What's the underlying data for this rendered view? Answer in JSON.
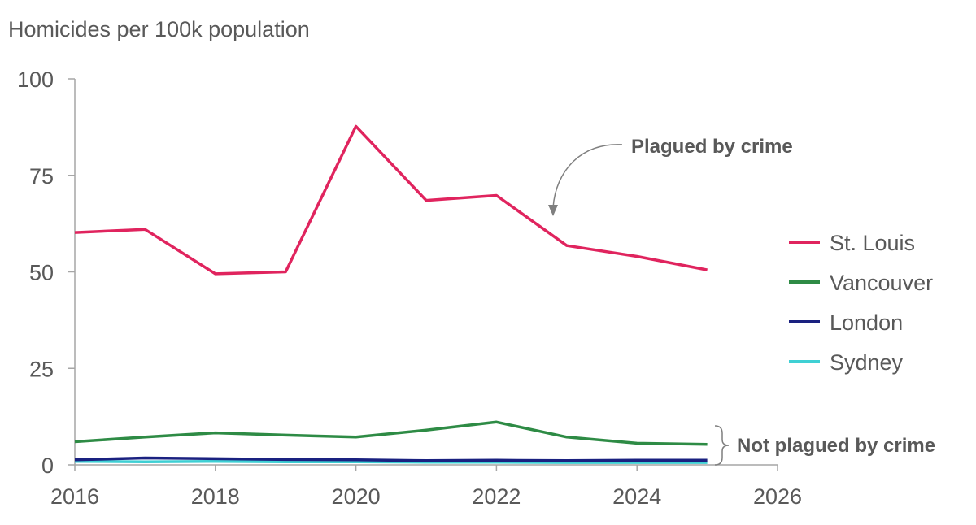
{
  "chart_data": {
    "type": "line",
    "ylabel": "Homicides per 100k population",
    "xlim": [
      2016,
      2026
    ],
    "ylim": [
      0,
      100
    ],
    "x_ticks": [
      "2016",
      "2018",
      "2020",
      "2022",
      "2024",
      "2026"
    ],
    "y_ticks": [
      "0",
      "25",
      "50",
      "75",
      "100"
    ],
    "x": [
      2016,
      2017,
      2018,
      2019,
      2020,
      2021,
      2022,
      2023,
      2024,
      2025
    ],
    "series": [
      {
        "name": "St. Louis",
        "color": "#e0245e",
        "values": [
          60.2,
          61.0,
          49.5,
          50.0,
          87.7,
          68.5,
          69.8,
          56.8,
          54.0,
          50.5
        ]
      },
      {
        "name": "Vancouver",
        "color": "#2e8b45",
        "values": [
          6.0,
          7.2,
          8.3,
          7.7,
          7.2,
          9.0,
          11.1,
          7.2,
          5.6,
          5.3
        ]
      },
      {
        "name": "London",
        "color": "#1a2180",
        "values": [
          1.3,
          1.8,
          1.6,
          1.4,
          1.3,
          1.1,
          1.2,
          1.1,
          1.2,
          1.2
        ]
      },
      {
        "name": "Sydney",
        "color": "#3fd0d4",
        "values": [
          0.9,
          0.8,
          0.9,
          0.8,
          0.8,
          0.7,
          0.7,
          0.6,
          0.6,
          0.6
        ]
      }
    ],
    "annotations": {
      "plagued": "Plagued by crime",
      "not_plagued": "Not plagued by crime"
    },
    "legend_position": "right",
    "grid": false
  }
}
